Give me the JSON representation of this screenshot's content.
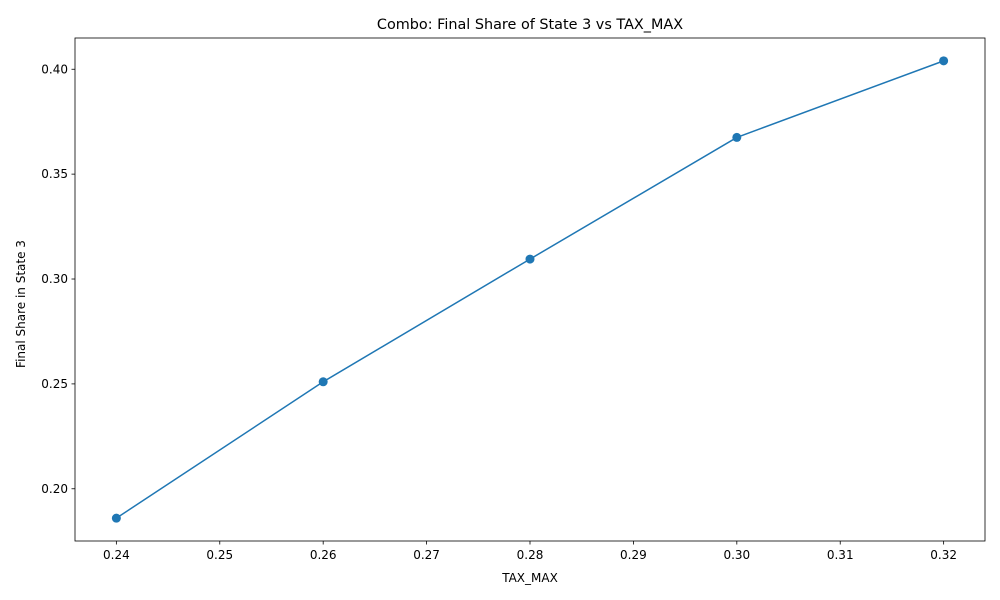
{
  "chart_data": {
    "type": "line",
    "title": "Combo: Final Share of State 3 vs TAX_MAX",
    "xlabel": "TAX_MAX",
    "ylabel": "Final Share in State 3",
    "x": [
      0.24,
      0.26,
      0.28,
      0.3,
      0.32
    ],
    "series": [
      {
        "name": "",
        "values": [
          0.186,
          0.251,
          0.3095,
          0.3675,
          0.404
        ]
      }
    ],
    "xlim": [
      0.236,
      0.324
    ],
    "ylim": [
      0.1751,
      0.4149
    ],
    "xticks": [
      0.24,
      0.25,
      0.26,
      0.27,
      0.28,
      0.29,
      0.3,
      0.31,
      0.32
    ],
    "xtick_labels": [
      "0.24",
      "0.25",
      "0.26",
      "0.27",
      "0.28",
      "0.29",
      "0.30",
      "0.31",
      "0.32"
    ],
    "yticks": [
      0.2,
      0.25,
      0.3,
      0.35,
      0.4
    ],
    "ytick_labels": [
      "0.20",
      "0.25",
      "0.30",
      "0.35",
      "0.40"
    ],
    "line_color": "#1f77b4",
    "grid": false,
    "markers": "circle"
  }
}
